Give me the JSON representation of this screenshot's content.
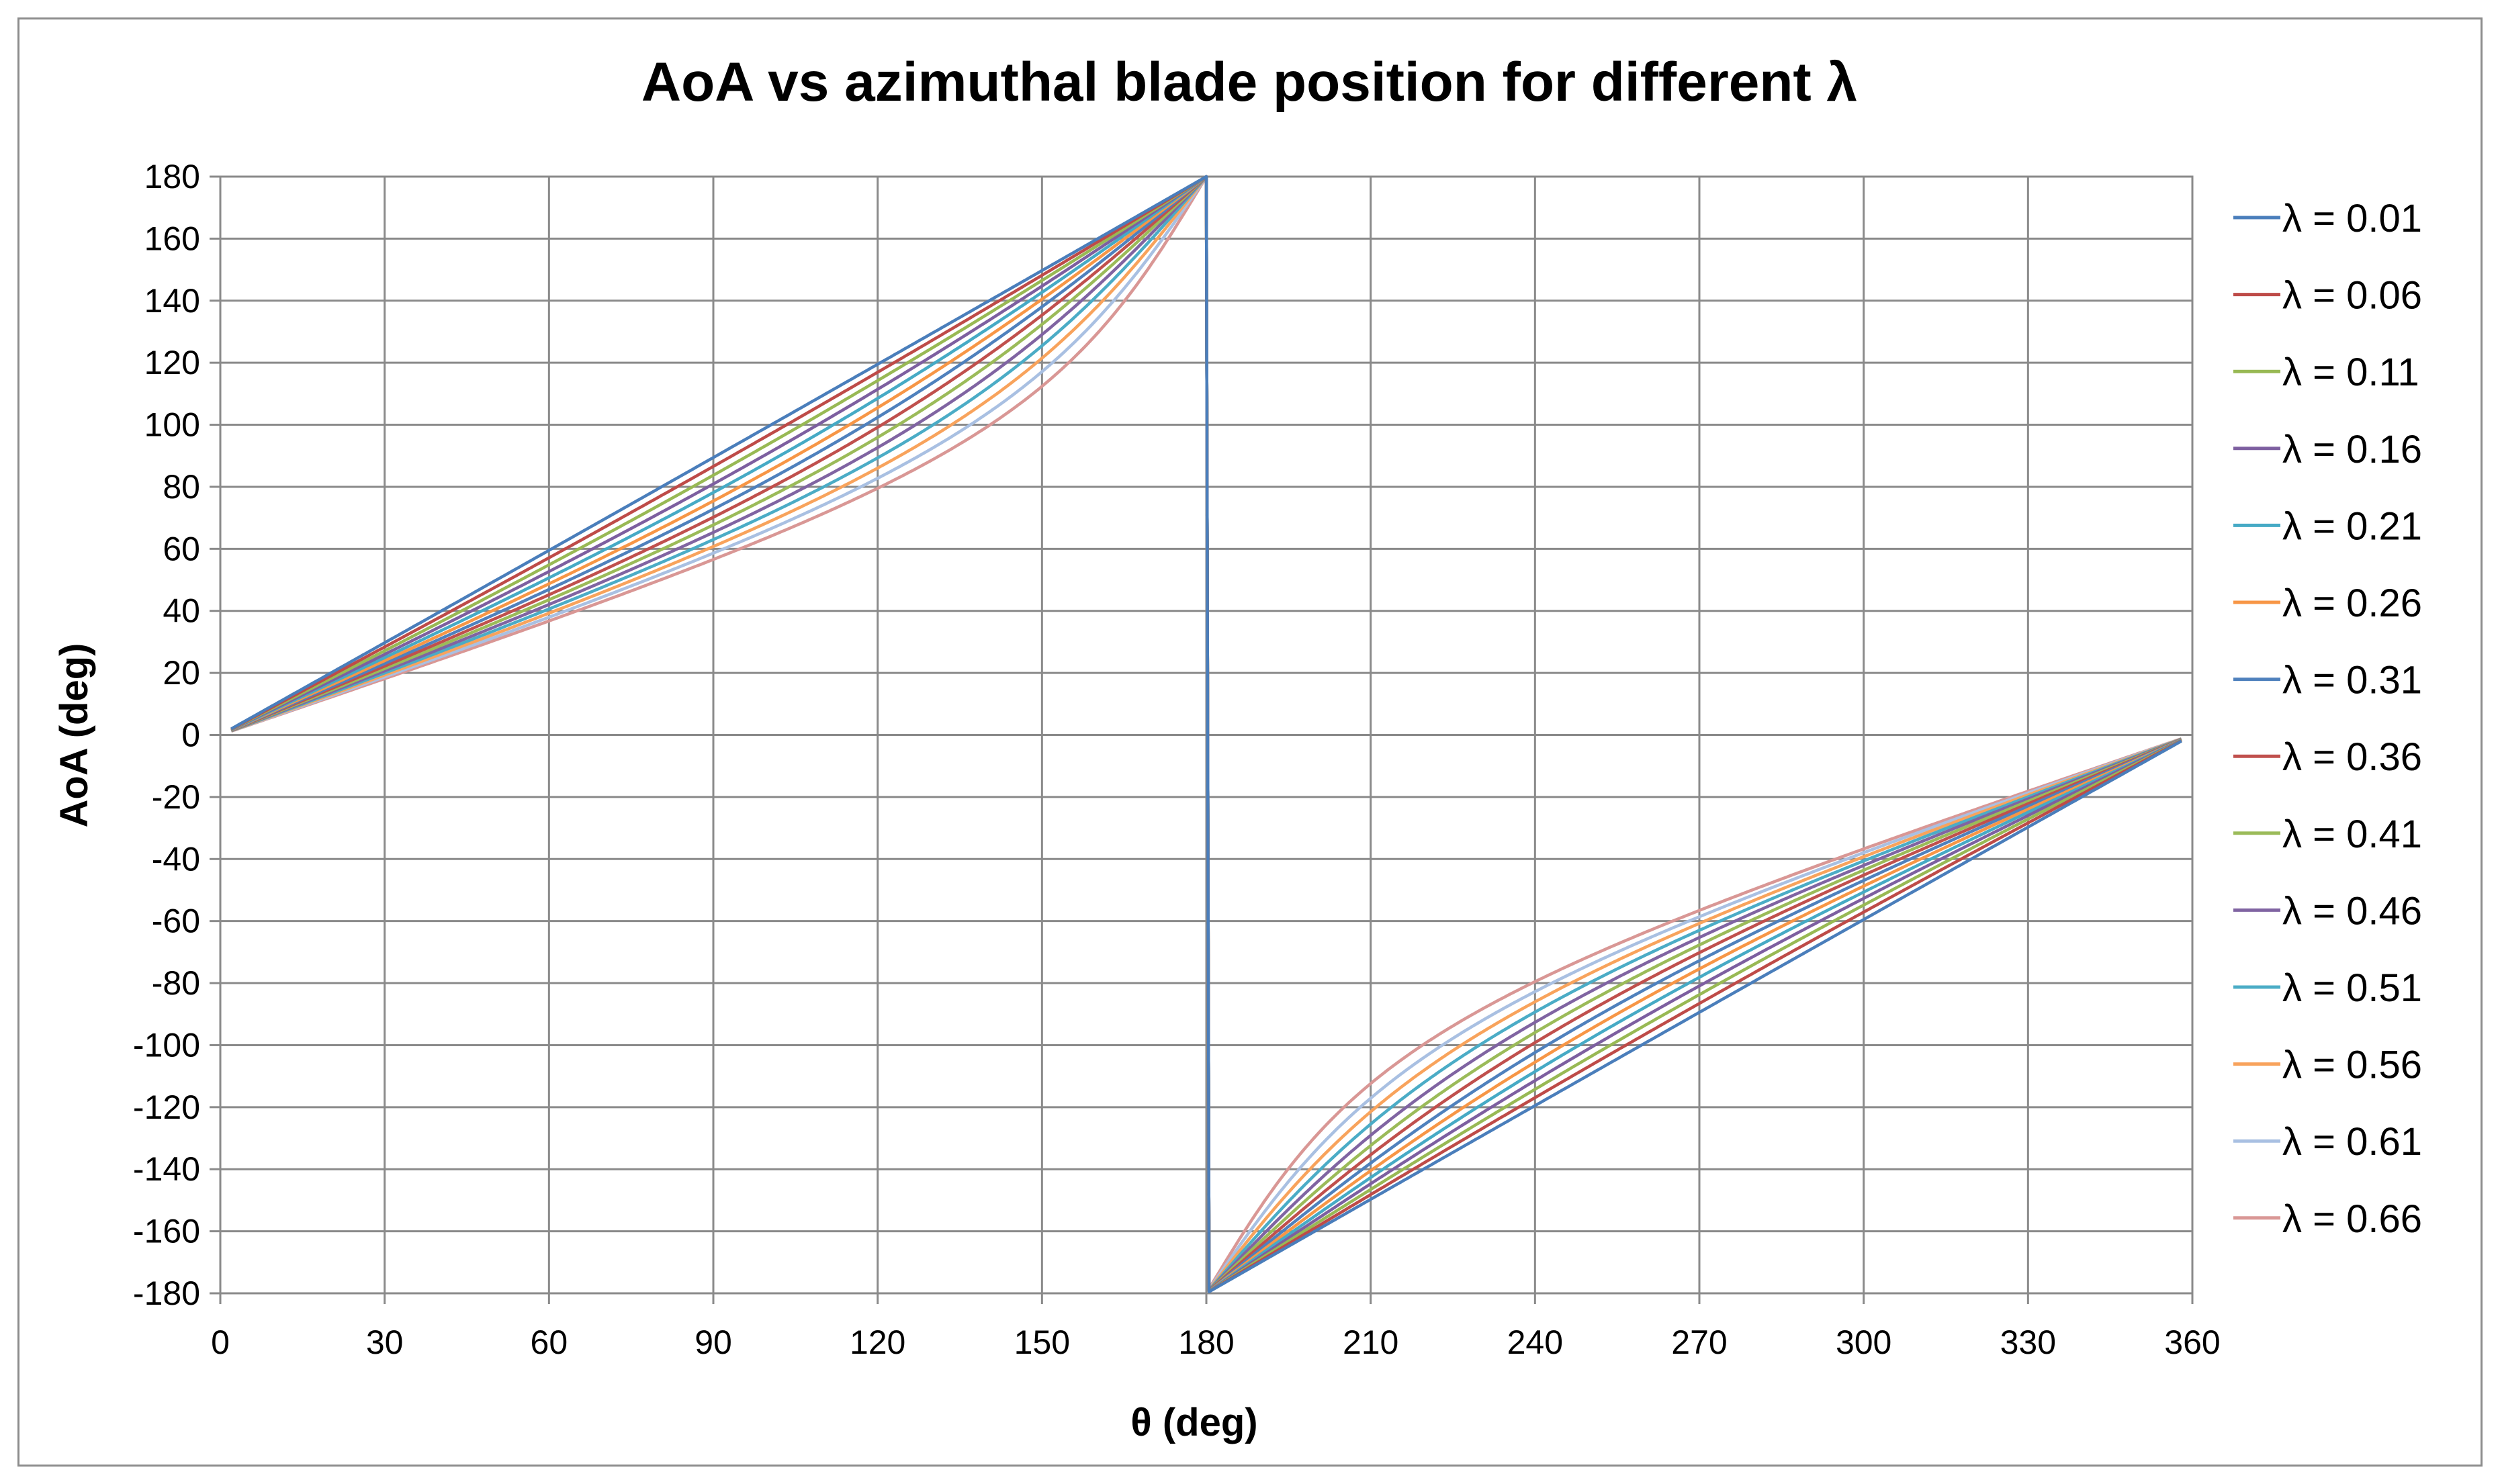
{
  "chart_data": {
    "type": "line",
    "title": "AoA vs azimuthal blade position for different λ",
    "xlabel": "θ (deg)",
    "ylabel": "AoA (deg)",
    "xlim": [
      0,
      360
    ],
    "ylim": [
      -180,
      180
    ],
    "x_ticks": [
      "0",
      "30",
      "60",
      "90",
      "120",
      "150",
      "180",
      "210",
      "240",
      "270",
      "300",
      "330",
      "360"
    ],
    "y_ticks": [
      "180",
      "160",
      "140",
      "120",
      "100",
      "80",
      "60",
      "40",
      "20",
      "0",
      "-20",
      "-40",
      "-60",
      "-80",
      "-100",
      "-120",
      "-140",
      "-160",
      "-180"
    ],
    "grid": true,
    "legend_position": "right",
    "x_range_plotted": [
      2,
      358
    ],
    "series": [
      {
        "name": "λ = 0.01",
        "lambda": 0.01,
        "color": "#4a7ebb"
      },
      {
        "name": "λ = 0.06",
        "lambda": 0.06,
        "color": "#be4b48"
      },
      {
        "name": "λ = 0.11",
        "lambda": 0.11,
        "color": "#98b954"
      },
      {
        "name": "λ = 0.16",
        "lambda": 0.16,
        "color": "#7d5fa0"
      },
      {
        "name": "λ = 0.21",
        "lambda": 0.21,
        "color": "#46aac5"
      },
      {
        "name": "λ = 0.26",
        "lambda": 0.26,
        "color": "#f79646"
      },
      {
        "name": "λ = 0.31",
        "lambda": 0.31,
        "color": "#4f81bd"
      },
      {
        "name": "λ = 0.36",
        "lambda": 0.36,
        "color": "#c0504d"
      },
      {
        "name": "λ = 0.41",
        "lambda": 0.41,
        "color": "#9bbb59"
      },
      {
        "name": "λ = 0.46",
        "lambda": 0.46,
        "color": "#8064a2"
      },
      {
        "name": "λ = 0.51",
        "lambda": 0.51,
        "color": "#4bacc6"
      },
      {
        "name": "λ = 0.56",
        "lambda": 0.56,
        "color": "#f8a35c"
      },
      {
        "name": "λ = 0.61",
        "lambda": 0.61,
        "color": "#a9c0e2"
      },
      {
        "name": "λ = 0.66",
        "lambda": 0.66,
        "color": "#d99795"
      }
    ]
  }
}
